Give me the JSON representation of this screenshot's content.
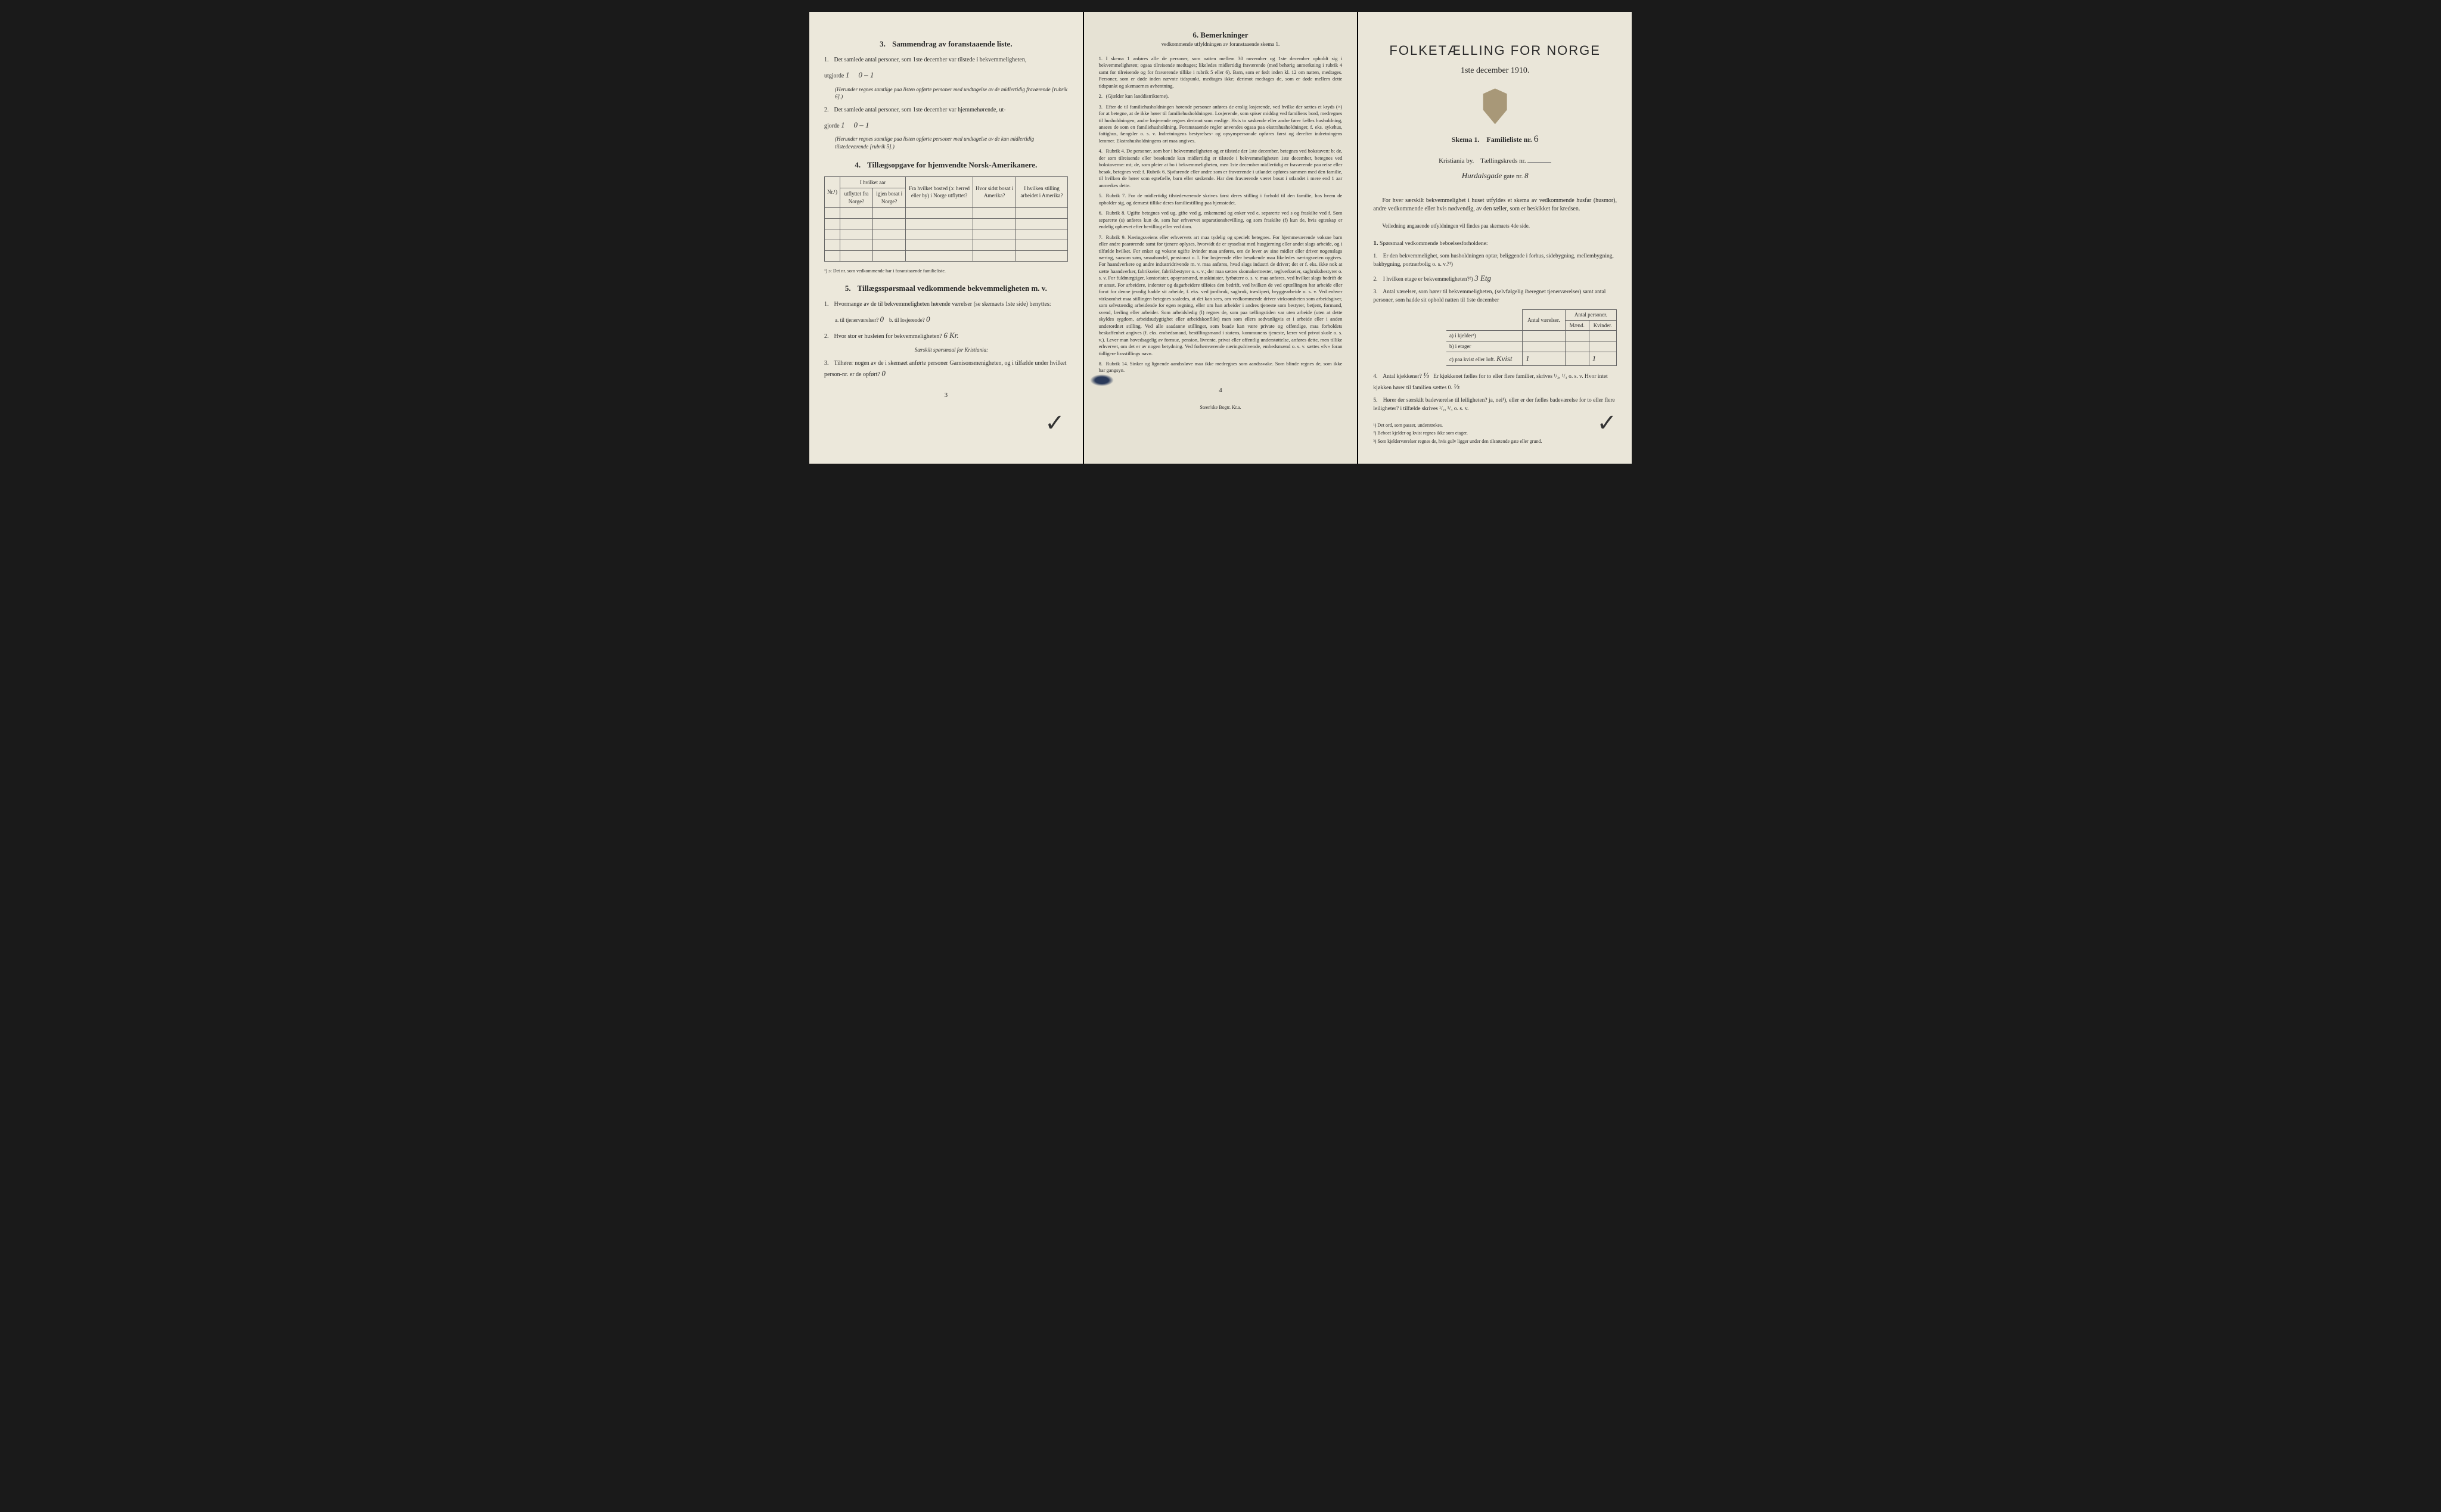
{
  "page_left": {
    "section3": {
      "title": "Sammendrag av foranstaaende liste.",
      "num": "3.",
      "item1": "Det samlede antal personer, som 1ste december var tilstede i bekvemmeligheten,",
      "item1_label": "utgjorde",
      "item1_val1": "1",
      "item1_val2": "0 – 1",
      "item1_note": "(Herunder regnes samtlige paa listen opførte personer med undtagelse av de midlertidig fraværende [rubrik 6].)",
      "item2": "Det samlede antal personer, som 1ste december var hjemmehørende, ut-",
      "item2_label": "gjorde",
      "item2_val1": "1",
      "item2_val2": "0 – 1",
      "item2_note": "(Herunder regnes samtlige paa listen opførte personer med undtagelse av de kun midlertidig tilstedeværende [rubrik 5].)"
    },
    "section4": {
      "title": "Tillægsopgave for hjemvendte Norsk-Amerikanere.",
      "num": "4.",
      "headers": {
        "nr": "Nr.¹)",
        "hvilket_aar": "I hvilket aar",
        "utflyttet": "utflyttet fra Norge?",
        "igjen": "igjen bosat i Norge?",
        "fra_bosted": "Fra hvilket bosted (ɔ: herred eller by) i Norge utflyttet?",
        "hvor_sidst": "Hvor sidst bosat i Amerika?",
        "stilling": "I hvilken stilling arbeidet i Amerika?"
      },
      "footnote": "¹) ɔ: Det nr. som vedkommende har i foranstaaende familieliste."
    },
    "section5": {
      "title": "Tillægsspørsmaal vedkommende bekvemmeligheten m. v.",
      "num": "5.",
      "item1": "Hvormange av de til bekvemmeligheten hørende værelser (se skemaets 1ste side) benyttes:",
      "item1a_label": "a. til tjenerværelser?",
      "item1a_val": "0",
      "item1b_label": "b. til losjerende?",
      "item1b_val": "0",
      "item2": "Hvor stor er husleien for bekvemmeligheten?",
      "item2_val": "6 Kr.",
      "item2_note": "Særskilt spørsmaal for Kristiania:",
      "item3": "Tilhører nogen av de i skemaet anførte personer Garnisonsmenigheten, og i tilfælde under hvilket person-nr. er de opført?",
      "item3_val": "0"
    },
    "page_num": "3"
  },
  "page_middle": {
    "title": "Bemerkninger",
    "title_num": "6.",
    "subtitle": "vedkommende utfyldningen av foranstaaende skema 1.",
    "items": [
      {
        "n": "1.",
        "text": "I skema 1 anføres alle de personer, som natten mellem 30 november og 1ste december opholdt sig i bekvemmeligheten; ogsaa tilreisende medtages; likeledes midlertidig fraværende (med behørig anmerkning i rubrik 4 samt for tilreisende og for fraværende tillike i rubrik 5 eller 6). Barn, som er født inden kl. 12 om natten, medtages. Personer, som er døde inden nævnte tidspunkt, medtages ikke; derimot medtages de, som er døde mellem dette tidspunkt og skemaernes avhentning."
      },
      {
        "n": "2.",
        "text": "(Gjælder kun landdistrikterne)."
      },
      {
        "n": "3.",
        "text": "Efter de til familiehusholdningen hørende personer anføres de enslig losjerende, ved hvilke der sættes et kryds (×) for at betegne, at de ikke hører til familiehusholdningen. Losjerende, som spiser middag ved familiens bord, medregnes til husholdningen; andre losjerende regnes derimot som enslige. Hvis to søskende eller andre fører fælles husholdning, ansees de som en familiehusholdning. Foranstaaende regler anvendes ogsaa paa ekstrahusholdninger, f. eks. sykehus, fattighus, fængsler o. s. v. Indretningens bestyrelses- og opsynspersonale opføres først og derefter indretningens lemmer. Ekstrahusholdningens art maa angives."
      },
      {
        "n": "4.",
        "text": "Rubrik 4. De personer, som bor i bekvemmeligheten og er tilstede der 1ste december, betegnes ved bokstaven: b; de, der som tilreisende eller besøkende kun midlertidig er tilstede i bekvemmeligheten 1ste december, betegnes ved bokstaverne: mt; de, som pleier at bo i bekvemmeligheten, men 1ste december midlertidig er fraværende paa reise eller besøk, betegnes ved: f. Rubrik 6. Sjøfarende eller andre som er fraværende i utlandet opføres sammen med den familie, til hvilken de hører som egtefælle, barn eller søskende. Har den fraværende været bosat i utlandet i mere end 1 aar anmerkes dette."
      },
      {
        "n": "5.",
        "text": "Rubrik 7. For de midlertidig tilstedeværende skrives først deres stilling i forhold til den familie, hos hvem de opholder sig, og dernæst tillike deres familiestilling paa hjemstedet."
      },
      {
        "n": "6.",
        "text": "Rubrik 8. Ugifte betegnes ved ug, gifte ved g, enkemænd og enker ved e, separerte ved s og fraskilte ved f. Som separerte (s) anføres kun de, som har erhvervet separationsbevilling, og som fraskilte (f) kun de, hvis egteskap er endelig ophævet efter bevilling eller ved dom."
      },
      {
        "n": "7.",
        "text": "Rubrik 9. Næringsveiens eller erhvervets art maa tydelig og specielt betegnes. For hjemmeværende voksne barn eller andre paarørende samt for tjenere oplyses, hvorvidt de er sysselsat med husgjerning eller andet slags arbeide, og i tilfælde hvilket. For enker og voksne ugifte kvinder maa anføres, om de lever av sine midler eller driver nogenslags næring, saasom søm, smaahandel, pensionat o. l. For losjerende eller besøkende maa likeledes næringsveien opgives. For haandverkere og andre industridrivende m. v. maa anføres, hvad slags industri de driver; det er f. eks. ikke nok at sætte haandverker, fabrikseier, fabrikbestyrer o. s. v.; der maa sættes skomakermester, teglverkseier, sagbruksbestyrer o. s. v. For fuldmægtiger, kontorister, opsynsmænd, maskinister, fyrbøtere o. s. v. maa anføres, ved hvilket slags bedrift de er ansat. For arbeidere, inderster og dagarbeidere tilføies den bedrift, ved hvilken de ved optællingen har arbeide eller forut for denne jevnlig hadde sit arbeide, f. eks. ved jordbruk, sagbruk, træsliperi, bryggearbeide o. s. v. Ved enhver virksomhet maa stillingen betegnes saaledes, at det kan sees, om vedkommende driver virksomheten som arbeidsgiver, som selvstændig arbeidende for egen regning, eller om han arbeider i andres tjeneste som bestyrer, betjent, formand, svend, lærling eller arbeider. Som arbeidsledig (l) regnes de, som paa tællingstiden var uten arbeide (uten at dette skyldes sygdom, arbeidsudygtighet eller arbeidskonflikt) men som ellers sedvanligvis er i arbeide eller i anden underordnet stilling. Ved alle saadanne stillinger, som baade kan være private og offentlige, maa forholdets beskaffenhet angives (f. eks. embedsmand, bestillingsmand i statens, kommunens tjeneste, lærer ved privat skole o. s. v.). Lever man hovedsagelig av formue, pension, livrente, privat eller offentlig understøttelse, anføres dette, men tillike erhvervet, om det er av nogen betydning. Ved forhenværende næringsdrivende, embedsmænd o. s. v. sættes «fv» foran tidligere livsstillings navn."
      },
      {
        "n": "8.",
        "text": "Rubrik 14. Sinker og lignende aandssløve maa ikke medregnes som aandssvake. Som blinde regnes de, som ikke har gangsyn."
      }
    ],
    "page_num": "4",
    "printer": "Steen'ske Bogtr. Kr.a."
  },
  "page_right": {
    "main_title": "FOLKETÆLLING FOR NORGE",
    "date": "1ste december 1910.",
    "skema_label": "Skema 1.",
    "familie_label": "Familieliste nr.",
    "familie_nr": "6",
    "by": "Kristiania by.",
    "tellingskreds": "Tællingskreds nr.",
    "gate_name": "Hurdalsgade",
    "gate_label": "gate nr.",
    "gate_nr": "8",
    "intro1": "For hver særskilt bekvemmelighet i huset utfyldes et skema av vedkommende husfar (husmor), andre vedkommende eller hvis nødvendig, av den tæller, som er beskikket for kredsen.",
    "intro2": "Veiledning angaaende utfyldningen vil findes paa skemaets 4de side.",
    "q_title": "Spørsmaal vedkommende beboelsesforholdene:",
    "q_title_num": "1.",
    "q1": "Er den bekvemmelighet, som husholdningen optar, beliggende i forhus, sidebygning, mellembygning, bakbygning, portnerbolig o. s. v.?¹)",
    "q2": "I hvilken etage er bekvemmeligheten?²)",
    "q2_val": "3 Etg",
    "q3": "Antal værelser, som hører til bekvemmeligheten, (selvfølgelig iberegnet tjenerværelser) samt antal personer, som hadde sit ophold natten til 1ste december",
    "table": {
      "h1": "Antal værelser.",
      "h2": "Antal personer.",
      "h2a": "Mænd.",
      "h2b": "Kvinder.",
      "r1": "a) i kjelder³)",
      "r2": "b) i etager",
      "r3": "c) paa kvist eller loft.",
      "r3_hw": "Kvist",
      "r3_v1": "1",
      "r3_v2": "1"
    },
    "q4": "Antal kjøkkener?",
    "q4_val": "⅓",
    "q4_cont": "Er kjøkkenet fælles for to eller flere familier, skrives ¹/₂, ¹/₃ o. s. v. Hvor intet kjøkken hører til familien sættes 0.",
    "q4_hw2": "⅓",
    "q5": "Hører der særskilt badeværelse til leiligheten? ja, nei¹), eller er der fælles badeværelse for to eller flere leiligheter? i tilfælde skrives ¹/₂, ¹/₃ o. s. v.",
    "footnotes": {
      "f1": "¹) Det ord, som passer, understrekes.",
      "f2": "²) Beboet kjelder og kvist regnes ikke som etager.",
      "f3": "³) Som kjelderværelser regnes de, hvis gulv ligger under den tilstøtende gate eller grund."
    }
  },
  "colors": {
    "bg": "#1a1a1a",
    "paper_left": "#ece8db",
    "paper_mid": "#e6e2d4",
    "paper_right": "#eae6d9",
    "text": "#2a2a2a",
    "border": "#666"
  }
}
